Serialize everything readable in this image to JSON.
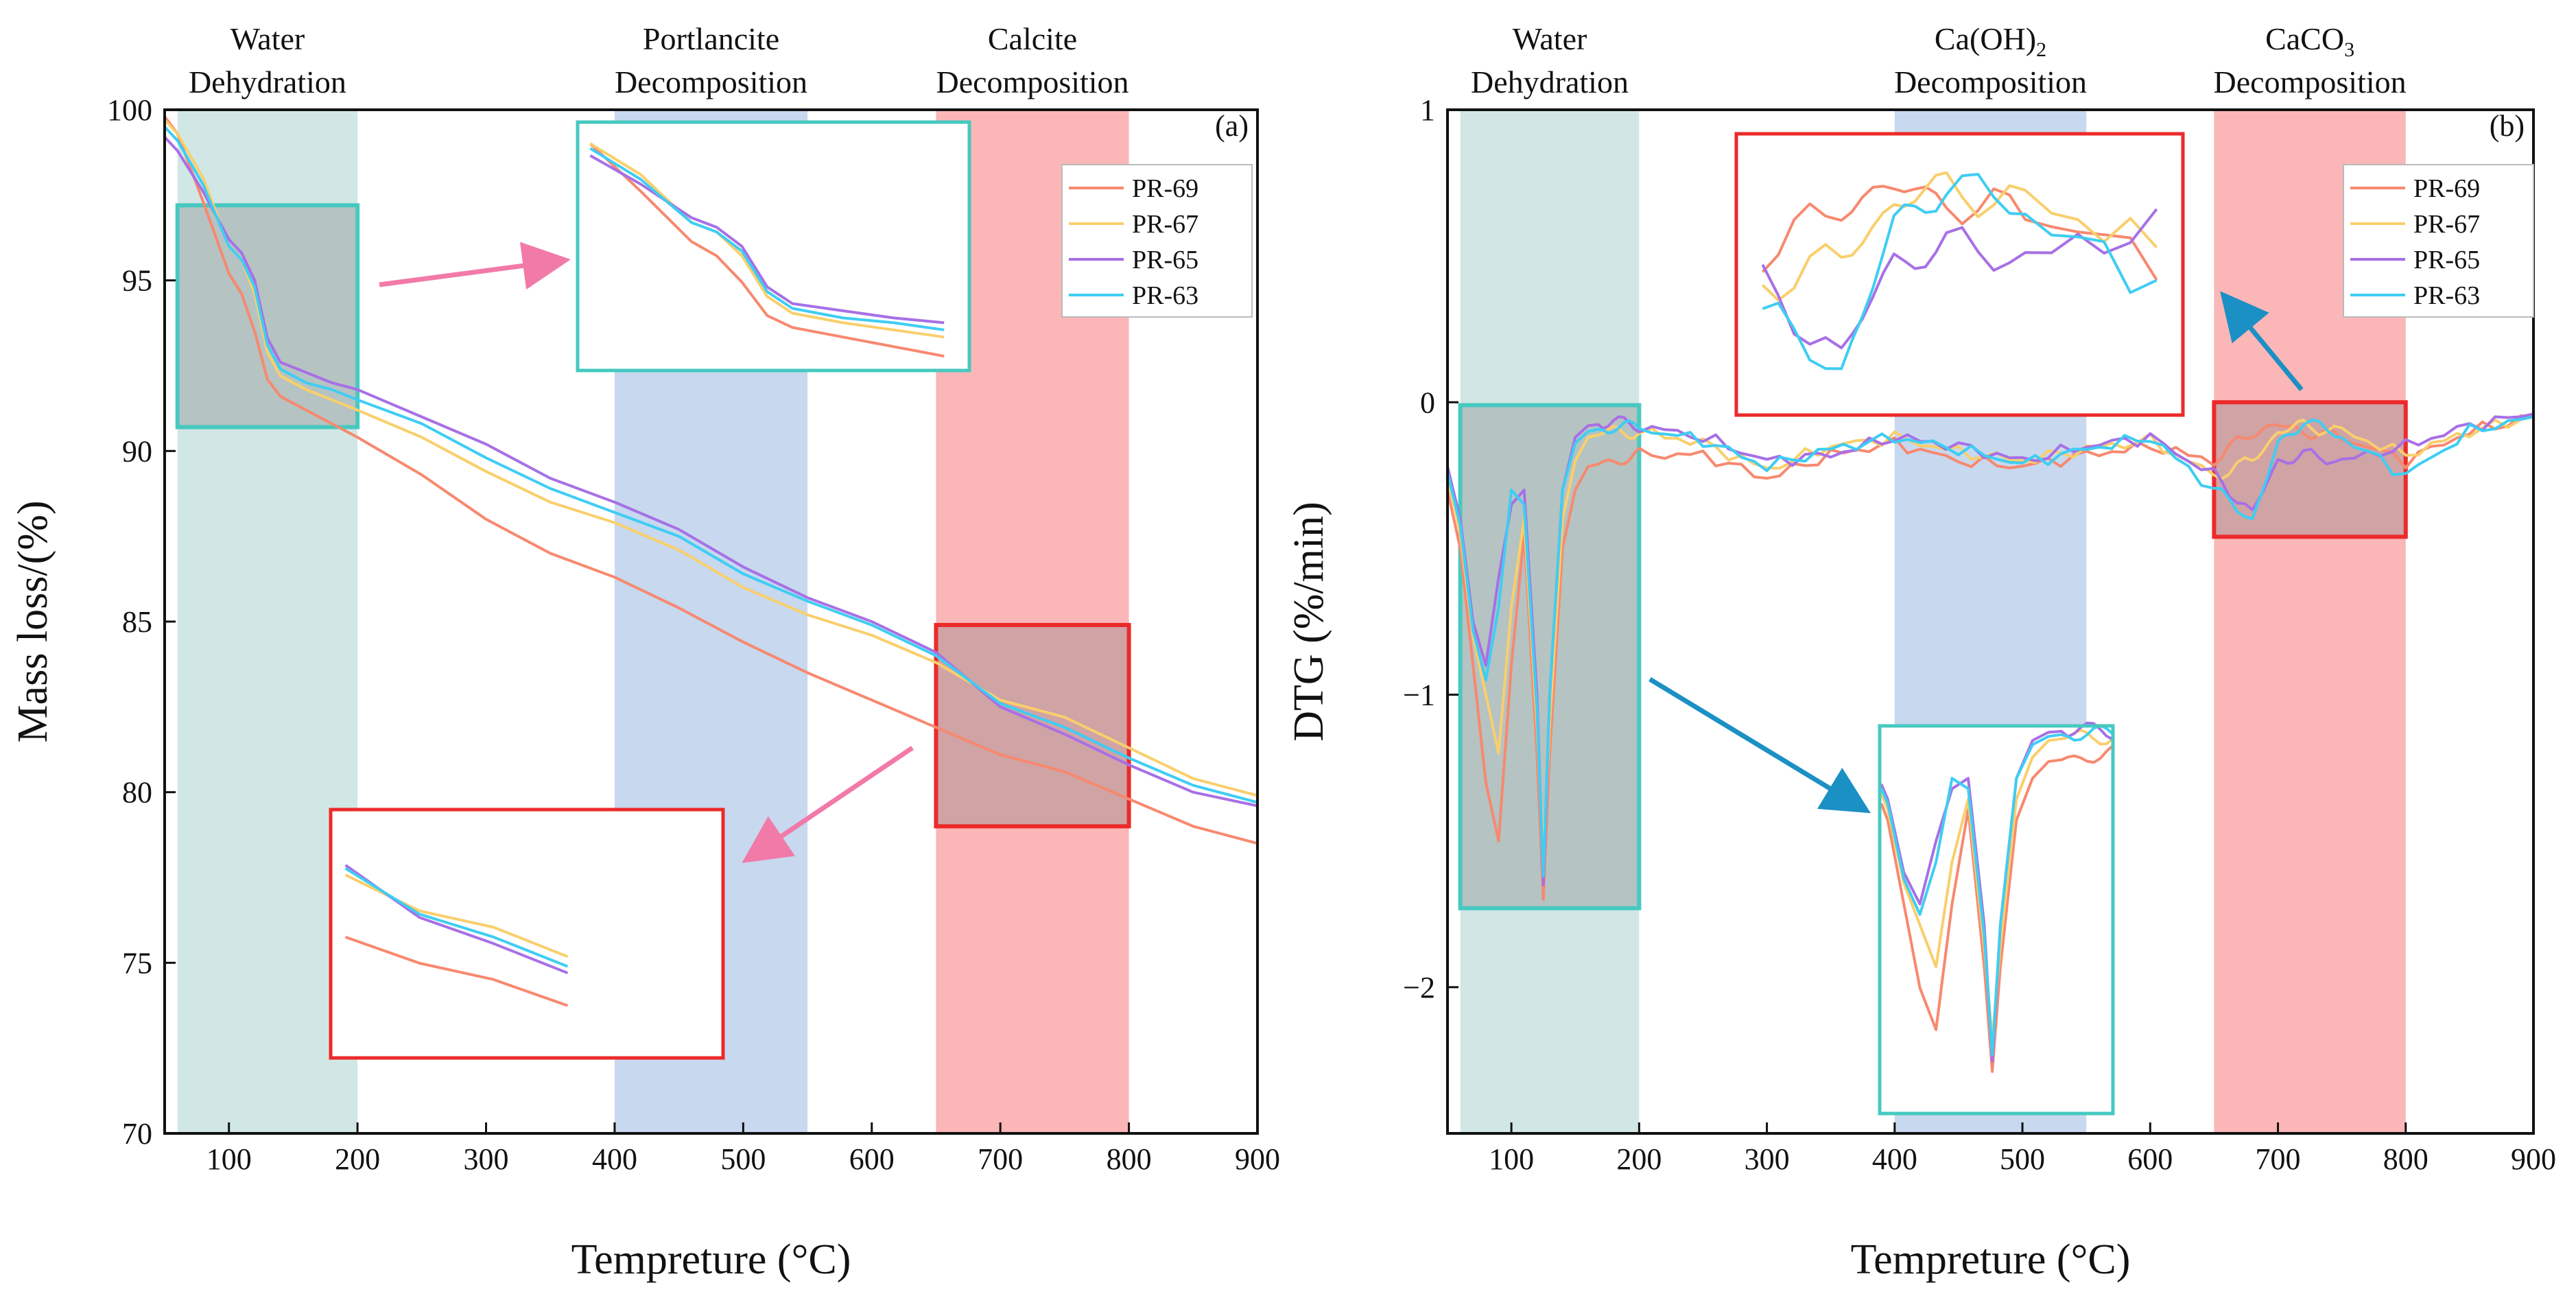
{
  "colors": {
    "series": {
      "PR-69": "#f7896f",
      "PR-67": "#f9cf6c",
      "PR-65": "#a770e6",
      "PR-63": "#3fcdf3"
    },
    "band_water": "#cfe6e4",
    "band_ca_oh": "#c4d6ee",
    "band_calcite": "#fbb2b4",
    "inset_teal": "#46c9c0",
    "inset_red": "#ec2a2a",
    "arrow_pink": "#f27aa8",
    "arrow_blue": "#1b90c4"
  },
  "chart_data": [
    {
      "panel": "a",
      "panel_label": "(a)",
      "type": "line",
      "xlabel": "Tempreture (°C)",
      "ylabel": "Mass loss/(%)",
      "xlim": [
        50,
        900
      ],
      "ylim": [
        70,
        100
      ],
      "xticks": [
        100,
        200,
        300,
        400,
        500,
        600,
        700,
        800,
        900
      ],
      "yticks": [
        70,
        75,
        80,
        85,
        90,
        95,
        100
      ],
      "legend": [
        "PR-69",
        "PR-67",
        "PR-65",
        "PR-63"
      ],
      "legend_position": "top-right",
      "regions": [
        {
          "x": [
            60,
            200
          ],
          "label_lines": [
            "Water",
            "Dehydration"
          ],
          "color": "band_water"
        },
        {
          "x": [
            400,
            550
          ],
          "label_lines": [
            "Portlancite",
            "Decomposition"
          ],
          "color": "band_ca_oh"
        },
        {
          "x": [
            650,
            800
          ],
          "label_lines": [
            "Calcite",
            "Decomposition"
          ],
          "color": "band_calcite"
        }
      ],
      "zoom_boxes": [
        {
          "x": [
            60,
            200
          ],
          "y": [
            90.7,
            97.2
          ],
          "color": "inset_teal"
        },
        {
          "x": [
            650,
            800
          ],
          "y": [
            79,
            84.9
          ],
          "color": "inset_red"
        }
      ],
      "series": [
        {
          "name": "PR-69",
          "x": [
            50,
            60,
            80,
            100,
            110,
            120,
            130,
            140,
            160,
            180,
            200,
            250,
            300,
            350,
            400,
            450,
            500,
            550,
            600,
            650,
            700,
            750,
            800,
            850,
            900
          ],
          "values": [
            99.8,
            99.3,
            97.3,
            95.2,
            94.6,
            93.5,
            92.1,
            91.6,
            91.2,
            90.8,
            90.4,
            89.3,
            88.0,
            87.0,
            86.3,
            85.4,
            84.4,
            83.5,
            82.7,
            81.9,
            81.1,
            80.6,
            79.8,
            79.0,
            78.5
          ]
        },
        {
          "name": "PR-67",
          "x": [
            50,
            60,
            80,
            100,
            110,
            120,
            130,
            140,
            160,
            180,
            200,
            250,
            300,
            350,
            400,
            450,
            500,
            550,
            600,
            650,
            700,
            750,
            800,
            850,
            900
          ],
          "values": [
            99.7,
            99.3,
            98.0,
            96.0,
            95.6,
            94.6,
            92.9,
            92.2,
            91.8,
            91.5,
            91.2,
            90.4,
            89.4,
            88.5,
            87.9,
            87.1,
            86.0,
            85.2,
            84.6,
            83.8,
            82.7,
            82.2,
            81.3,
            80.4,
            79.9
          ]
        },
        {
          "name": "PR-65",
          "x": [
            50,
            60,
            80,
            100,
            110,
            120,
            130,
            140,
            160,
            180,
            200,
            250,
            300,
            350,
            400,
            450,
            500,
            550,
            600,
            650,
            700,
            750,
            800,
            850,
            900
          ],
          "values": [
            99.2,
            98.8,
            97.6,
            96.2,
            95.8,
            95.0,
            93.3,
            92.6,
            92.3,
            92.0,
            91.8,
            91.0,
            90.2,
            89.2,
            88.5,
            87.7,
            86.6,
            85.7,
            85.0,
            84.1,
            82.5,
            81.7,
            80.8,
            80.0,
            79.6
          ]
        },
        {
          "name": "PR-63",
          "x": [
            50,
            60,
            80,
            100,
            110,
            120,
            130,
            140,
            160,
            180,
            200,
            250,
            300,
            350,
            400,
            450,
            500,
            550,
            600,
            650,
            700,
            750,
            800,
            850,
            900
          ],
          "values": [
            99.5,
            99.1,
            97.8,
            96.0,
            95.6,
            94.8,
            93.1,
            92.4,
            92.0,
            91.8,
            91.5,
            90.8,
            89.8,
            88.9,
            88.2,
            87.5,
            86.4,
            85.6,
            84.9,
            84.0,
            82.6,
            81.9,
            81.0,
            80.2,
            79.7
          ]
        }
      ]
    },
    {
      "panel": "b",
      "panel_label": "(b)",
      "type": "line",
      "xlabel": "Tempreture (°C)",
      "ylabel": "DTG (%/min)",
      "xlim": [
        50,
        900
      ],
      "ylim": [
        -2.5,
        1
      ],
      "xticks": [
        100,
        200,
        300,
        400,
        500,
        600,
        700,
        800,
        900
      ],
      "yticks": [
        -2,
        -1,
        0,
        1
      ],
      "ytick_labels": [
        "−2",
        "−1",
        "0",
        "1"
      ],
      "legend": [
        "PR-69",
        "PR-67",
        "PR-65",
        "PR-63"
      ],
      "legend_position": "top-right",
      "regions": [
        {
          "x": [
            60,
            200
          ],
          "label_lines": [
            "Water",
            "Dehydration"
          ],
          "color": "band_water"
        },
        {
          "x": [
            400,
            550
          ],
          "label_lines": [
            "Ca(OH)",
            "Decomposition"
          ],
          "label_subscript": "2",
          "color": "band_ca_oh"
        },
        {
          "x": [
            650,
            800
          ],
          "label_lines": [
            "CaCO",
            "Decomposition"
          ],
          "label_subscript": "3",
          "color": "band_calcite"
        }
      ],
      "zoom_boxes": [
        {
          "x": [
            60,
            200
          ],
          "y": [
            -1.73,
            -0.01
          ],
          "color": "inset_teal"
        },
        {
          "x": [
            650,
            800
          ],
          "y": [
            -0.46,
            0.0
          ],
          "color": "inset_red"
        }
      ],
      "series": [
        {
          "name": "PR-69",
          "x": [
            50,
            60,
            70,
            80,
            90,
            100,
            110,
            120,
            125,
            130,
            140,
            150,
            160,
            180,
            200,
            250,
            300,
            350,
            400,
            450,
            500,
            550,
            600,
            650,
            680,
            700,
            720,
            750,
            800,
            850,
            900
          ],
          "values": [
            -0.3,
            -0.5,
            -0.9,
            -1.3,
            -1.5,
            -0.9,
            -0.45,
            -1.2,
            -1.7,
            -1.2,
            -0.5,
            -0.3,
            -0.22,
            -0.2,
            -0.18,
            -0.18,
            -0.26,
            -0.18,
            -0.14,
            -0.2,
            -0.22,
            -0.18,
            -0.15,
            -0.2,
            -0.1,
            -0.08,
            -0.1,
            -0.12,
            -0.2,
            -0.1,
            -0.05
          ]
        },
        {
          "name": "PR-67",
          "x": [
            50,
            60,
            70,
            80,
            90,
            100,
            110,
            120,
            125,
            130,
            140,
            150,
            160,
            180,
            200,
            250,
            300,
            350,
            400,
            450,
            500,
            550,
            600,
            650,
            680,
            700,
            720,
            750,
            800,
            850,
            900
          ],
          "values": [
            -0.25,
            -0.45,
            -0.8,
            -1.0,
            -1.2,
            -0.7,
            -0.4,
            -1.1,
            -1.55,
            -1.1,
            -0.4,
            -0.2,
            -0.12,
            -0.1,
            -0.1,
            -0.14,
            -0.23,
            -0.15,
            -0.12,
            -0.17,
            -0.2,
            -0.16,
            -0.13,
            -0.25,
            -0.2,
            -0.1,
            -0.08,
            -0.1,
            -0.18,
            -0.1,
            -0.05
          ]
        },
        {
          "name": "PR-65",
          "x": [
            50,
            60,
            70,
            80,
            90,
            100,
            110,
            120,
            125,
            130,
            140,
            150,
            160,
            180,
            200,
            250,
            300,
            350,
            400,
            450,
            500,
            550,
            600,
            650,
            680,
            700,
            720,
            750,
            800,
            850,
            900
          ],
          "values": [
            -0.22,
            -0.4,
            -0.75,
            -0.9,
            -0.6,
            -0.35,
            -0.3,
            -1.0,
            -1.65,
            -1.0,
            -0.3,
            -0.12,
            -0.08,
            -0.07,
            -0.08,
            -0.12,
            -0.2,
            -0.18,
            -0.12,
            -0.15,
            -0.2,
            -0.15,
            -0.12,
            -0.25,
            -0.38,
            -0.2,
            -0.18,
            -0.2,
            -0.15,
            -0.08,
            -0.04
          ]
        },
        {
          "name": "PR-63",
          "x": [
            50,
            60,
            70,
            80,
            90,
            100,
            110,
            120,
            125,
            130,
            140,
            150,
            160,
            180,
            200,
            250,
            300,
            350,
            400,
            450,
            500,
            550,
            600,
            650,
            680,
            700,
            720,
            750,
            800,
            850,
            900
          ],
          "values": [
            -0.24,
            -0.42,
            -0.78,
            -0.95,
            -0.7,
            -0.3,
            -0.35,
            -1.05,
            -1.62,
            -1.0,
            -0.3,
            -0.14,
            -0.1,
            -0.08,
            -0.09,
            -0.13,
            -0.22,
            -0.16,
            -0.12,
            -0.16,
            -0.21,
            -0.16,
            -0.12,
            -0.3,
            -0.4,
            -0.15,
            -0.06,
            -0.12,
            -0.25,
            -0.1,
            -0.05
          ]
        }
      ]
    }
  ]
}
